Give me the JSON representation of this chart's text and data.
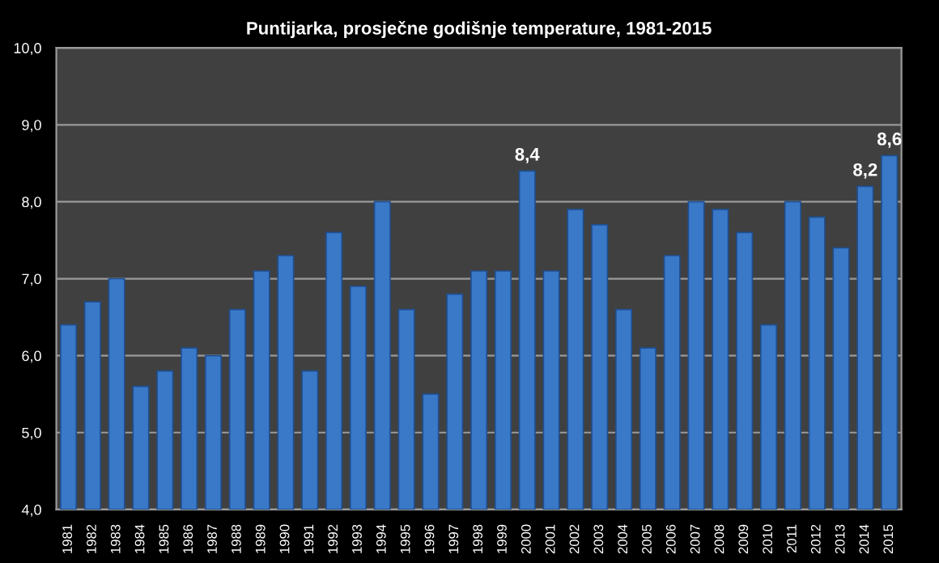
{
  "chart_data": {
    "type": "bar",
    "title": "Puntijarka, prosječne godišnje temperature, 1981-2015",
    "categories": [
      "1981",
      "1982",
      "1983",
      "1984",
      "1985",
      "1986",
      "1987",
      "1988",
      "1989",
      "1990",
      "1991",
      "1992",
      "1993",
      "1994",
      "1995",
      "1996",
      "1997",
      "1998",
      "1999",
      "2000",
      "2001",
      "2002",
      "2003",
      "2004",
      "2005",
      "2006",
      "2007",
      "2008",
      "2009",
      "2010",
      "2011",
      "2012",
      "2013",
      "2014",
      "2015"
    ],
    "values": [
      6.4,
      6.7,
      7.0,
      5.6,
      5.8,
      6.1,
      6.0,
      6.6,
      7.1,
      7.3,
      5.8,
      7.6,
      6.9,
      8.0,
      6.6,
      5.5,
      6.8,
      7.1,
      7.1,
      8.4,
      7.1,
      7.9,
      7.7,
      6.6,
      6.1,
      7.3,
      8.0,
      7.9,
      7.6,
      6.4,
      8.0,
      7.8,
      7.4,
      8.2,
      8.6
    ],
    "value_labels": [
      null,
      null,
      null,
      null,
      null,
      null,
      null,
      null,
      null,
      null,
      null,
      null,
      null,
      null,
      null,
      null,
      null,
      null,
      null,
      "8,4",
      null,
      null,
      null,
      null,
      null,
      null,
      null,
      null,
      null,
      null,
      null,
      null,
      null,
      "8,2",
      "8,6"
    ],
    "color": "#3a78c8",
    "ylim": [
      4.0,
      10.0
    ],
    "yticks": [
      {
        "value": 4.0,
        "label": "4,0"
      },
      {
        "value": 5.0,
        "label": "5,0"
      },
      {
        "value": 6.0,
        "label": "6,0"
      },
      {
        "value": 7.0,
        "label": "7,0"
      },
      {
        "value": 8.0,
        "label": "8,0"
      },
      {
        "value": 9.0,
        "label": "9,0"
      },
      {
        "value": 10.0,
        "label": "10,0"
      }
    ],
    "grid": "y"
  }
}
